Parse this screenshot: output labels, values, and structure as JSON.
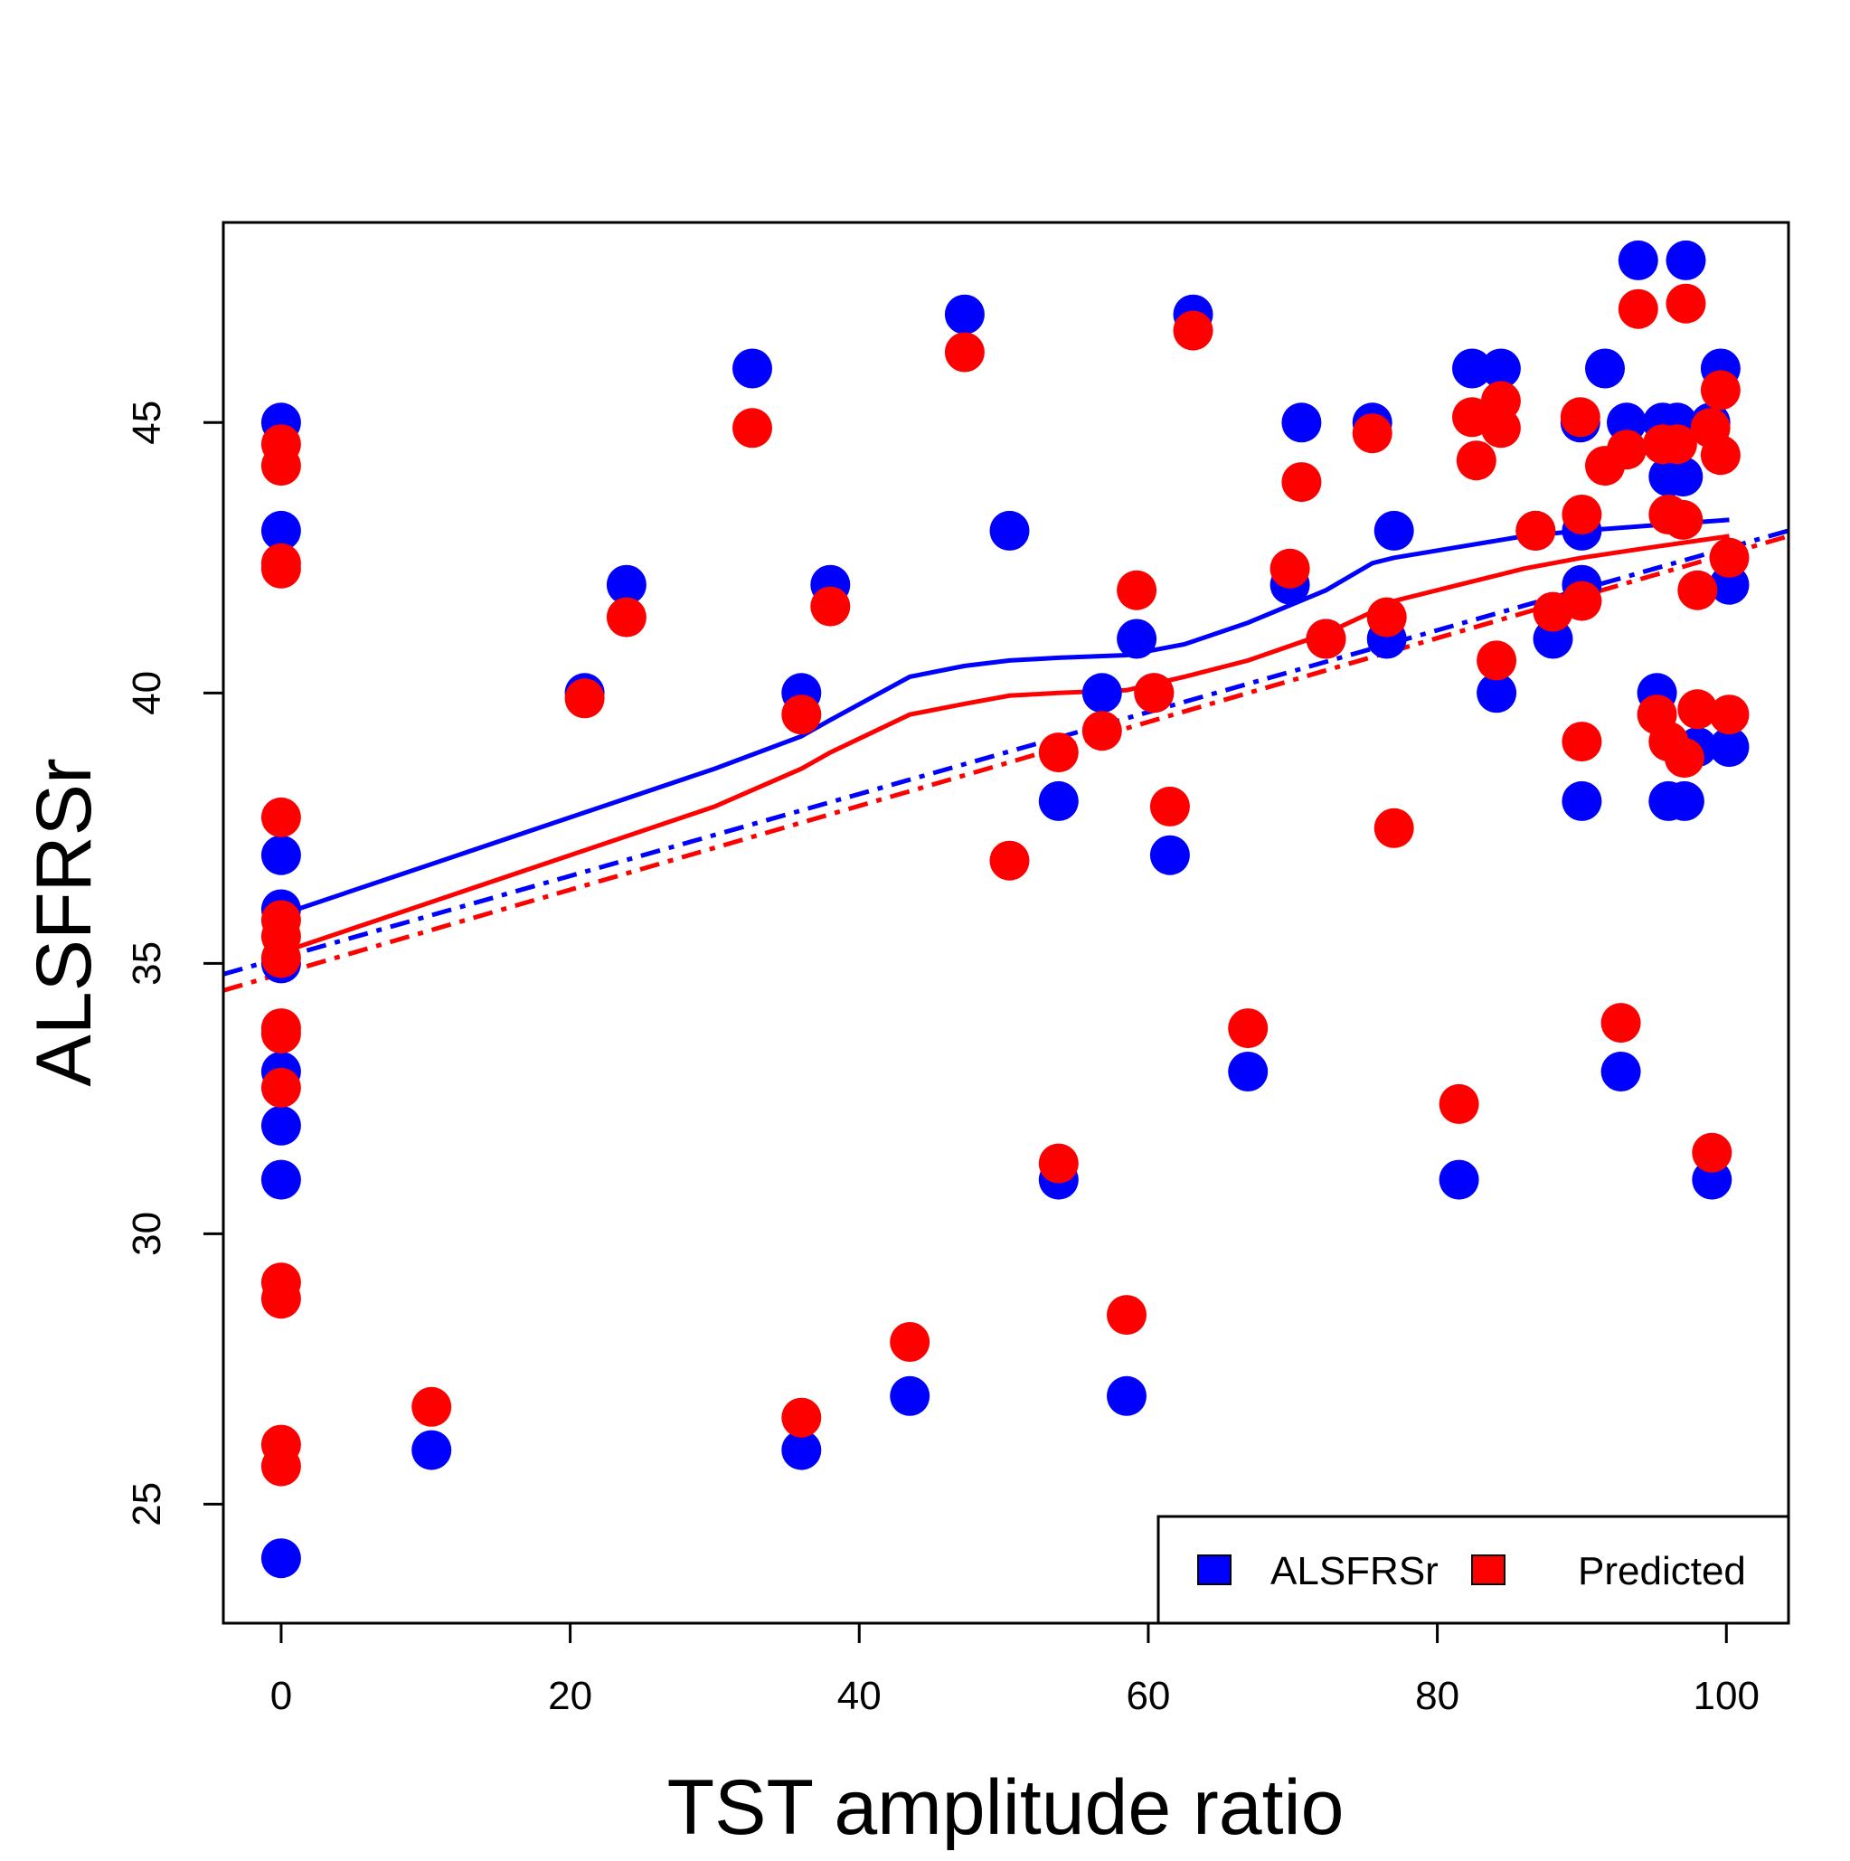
{
  "chart_data": {
    "type": "scatter",
    "xlabel": "TST amplitude ratio",
    "ylabel": "ALSFRSr",
    "xlim": [
      -4,
      104.3
    ],
    "ylim": [
      22.8,
      48.7
    ],
    "x_ticks": [
      "0",
      "20",
      "40",
      "60",
      "80",
      "100"
    ],
    "x_tick_values": [
      0,
      20,
      40,
      60,
      80,
      100
    ],
    "y_ticks": [
      "25",
      "30",
      "35",
      "40",
      "45"
    ],
    "y_tick_values": [
      25,
      30,
      35,
      40,
      45
    ],
    "legend": {
      "position": "bottom-right",
      "entries": [
        {
          "label": "ALSFRSr",
          "color": "#0000ff"
        },
        {
          "label": "Predicted",
          "color": "#ff0000"
        }
      ]
    },
    "series": [
      {
        "name": "ALSFRSr",
        "color": "#0000ff",
        "points": [
          [
            0,
            45
          ],
          [
            0,
            43
          ],
          [
            0,
            37
          ],
          [
            0,
            36
          ],
          [
            0,
            35
          ],
          [
            0,
            33
          ],
          [
            0,
            32
          ],
          [
            0,
            31
          ],
          [
            0,
            24
          ],
          [
            10.4,
            26
          ],
          [
            21,
            40
          ],
          [
            23.9,
            42
          ],
          [
            32.6,
            46
          ],
          [
            36,
            40
          ],
          [
            36,
            26
          ],
          [
            38,
            42
          ],
          [
            43.5,
            27
          ],
          [
            47.3,
            47
          ],
          [
            50.4,
            43
          ],
          [
            53.8,
            38
          ],
          [
            53.8,
            31
          ],
          [
            56.8,
            40
          ],
          [
            58.5,
            27
          ],
          [
            59.2,
            41
          ],
          [
            60.4,
            40
          ],
          [
            61.5,
            37
          ],
          [
            63.1,
            47
          ],
          [
            66.9,
            33
          ],
          [
            69.8,
            42
          ],
          [
            70.6,
            45
          ],
          [
            72.3,
            41
          ],
          [
            75.5,
            45
          ],
          [
            76.5,
            41
          ],
          [
            77,
            43
          ],
          [
            81.5,
            31
          ],
          [
            82.4,
            46
          ],
          [
            84.4,
            46
          ],
          [
            84.1,
            40
          ],
          [
            86.8,
            43
          ],
          [
            88,
            41
          ],
          [
            89.9,
            45
          ],
          [
            90,
            43
          ],
          [
            90,
            42
          ],
          [
            90,
            38
          ],
          [
            91.6,
            46
          ],
          [
            92.7,
            33
          ],
          [
            93.1,
            45
          ],
          [
            93.9,
            48
          ],
          [
            95.2,
            40
          ],
          [
            95.6,
            45
          ],
          [
            96,
            44
          ],
          [
            96,
            38
          ],
          [
            96.6,
            45
          ],
          [
            97,
            44
          ],
          [
            97.1,
            38
          ],
          [
            97.2,
            48
          ],
          [
            98,
            39
          ],
          [
            98.9,
            45
          ],
          [
            99,
            31
          ],
          [
            99.6,
            46
          ],
          [
            100.2,
            42
          ],
          [
            100.2,
            39
          ]
        ]
      },
      {
        "name": "Predicted",
        "color": "#ff0000",
        "points": [
          [
            0,
            44.6
          ],
          [
            0,
            44.2
          ],
          [
            0,
            42.4
          ],
          [
            0,
            42.3
          ],
          [
            0,
            37.7
          ],
          [
            0,
            35.8
          ],
          [
            0,
            35.5
          ],
          [
            0,
            35.1
          ],
          [
            0,
            33.8
          ],
          [
            0,
            33.7
          ],
          [
            0,
            32.7
          ],
          [
            0,
            29.1
          ],
          [
            0,
            28.8
          ],
          [
            0,
            26.1
          ],
          [
            0,
            25.7
          ],
          [
            10.4,
            26.8
          ],
          [
            21,
            39.9
          ],
          [
            23.9,
            41.4
          ],
          [
            32.6,
            44.9
          ],
          [
            36,
            39.6
          ],
          [
            36,
            26.6
          ],
          [
            38,
            41.6
          ],
          [
            43.5,
            28
          ],
          [
            47.3,
            46.3
          ],
          [
            50.4,
            36.9
          ],
          [
            53.8,
            38.9
          ],
          [
            53.8,
            31.3
          ],
          [
            56.8,
            39.3
          ],
          [
            58.5,
            28.5
          ],
          [
            59.2,
            41.9
          ],
          [
            60.4,
            40
          ],
          [
            61.5,
            37.9
          ],
          [
            63.1,
            46.7
          ],
          [
            66.9,
            33.8
          ],
          [
            69.8,
            42.3
          ],
          [
            70.6,
            43.9
          ],
          [
            72.3,
            41
          ],
          [
            75.5,
            44.8
          ],
          [
            76.5,
            41.4
          ],
          [
            77,
            37.5
          ],
          [
            81.5,
            32.4
          ],
          [
            82.4,
            45.1
          ],
          [
            82.7,
            44.3
          ],
          [
            84.4,
            45.4
          ],
          [
            84.4,
            44.9
          ],
          [
            84.1,
            40.6
          ],
          [
            86.8,
            43
          ],
          [
            88,
            41.5
          ],
          [
            89.9,
            45.1
          ],
          [
            90,
            43.3
          ],
          [
            90,
            41.7
          ],
          [
            90,
            39.1
          ],
          [
            91.6,
            44.2
          ],
          [
            92.7,
            33.9
          ],
          [
            93.1,
            44.5
          ],
          [
            93.9,
            47.1
          ],
          [
            95.2,
            39.6
          ],
          [
            95.6,
            44.6
          ],
          [
            96,
            43.3
          ],
          [
            96,
            39.1
          ],
          [
            96.6,
            44.6
          ],
          [
            97,
            43.2
          ],
          [
            97.1,
            38.8
          ],
          [
            97.2,
            47.2
          ],
          [
            98,
            41.9
          ],
          [
            98,
            39.7
          ],
          [
            98.9,
            44.9
          ],
          [
            99,
            31.5
          ],
          [
            99.6,
            45.6
          ],
          [
            99.6,
            44.4
          ],
          [
            100.2,
            42.5
          ],
          [
            100.2,
            39.6
          ]
        ]
      }
    ],
    "smooth_lines": [
      {
        "series": "ALSFRSr",
        "color": "#0000ff",
        "style": "solid",
        "points": [
          [
            0,
            35.9
          ],
          [
            10,
            36.8
          ],
          [
            20,
            37.7
          ],
          [
            30,
            38.6
          ],
          [
            36,
            39.2
          ],
          [
            38,
            39.5
          ],
          [
            43.5,
            40.3
          ],
          [
            47.3,
            40.5
          ],
          [
            50.4,
            40.6
          ],
          [
            53.8,
            40.65
          ],
          [
            58.5,
            40.7
          ],
          [
            62.5,
            40.9
          ],
          [
            66.9,
            41.3
          ],
          [
            72.3,
            41.9
          ],
          [
            75.5,
            42.4
          ],
          [
            77,
            42.5
          ],
          [
            81.5,
            42.7
          ],
          [
            86,
            42.9
          ],
          [
            90,
            43.0
          ],
          [
            95,
            43.1
          ],
          [
            100.2,
            43.2
          ]
        ]
      },
      {
        "series": "Predicted",
        "color": "#ff0000",
        "style": "solid",
        "points": [
          [
            0,
            35.2
          ],
          [
            10,
            36.1
          ],
          [
            20,
            37.0
          ],
          [
            30,
            37.9
          ],
          [
            36,
            38.6
          ],
          [
            38,
            38.9
          ],
          [
            43.5,
            39.6
          ],
          [
            47.3,
            39.8
          ],
          [
            50.4,
            39.95
          ],
          [
            53.8,
            40.0
          ],
          [
            58.5,
            40.05
          ],
          [
            62.5,
            40.3
          ],
          [
            66.9,
            40.6
          ],
          [
            72.3,
            41.1
          ],
          [
            75.5,
            41.5
          ],
          [
            77,
            41.7
          ],
          [
            81.5,
            42.0
          ],
          [
            86,
            42.3
          ],
          [
            90,
            42.5
          ],
          [
            95,
            42.7
          ],
          [
            100.2,
            42.9
          ]
        ]
      },
      {
        "series": "ALSFRSr",
        "color": "#0000ff",
        "style": "dash-dot",
        "points": [
          [
            -4,
            34.8
          ],
          [
            104.3,
            43.0
          ]
        ]
      },
      {
        "series": "Predicted",
        "color": "#ff0000",
        "style": "dash-dot",
        "points": [
          [
            -4,
            34.5
          ],
          [
            104.3,
            42.9
          ]
        ]
      }
    ]
  }
}
